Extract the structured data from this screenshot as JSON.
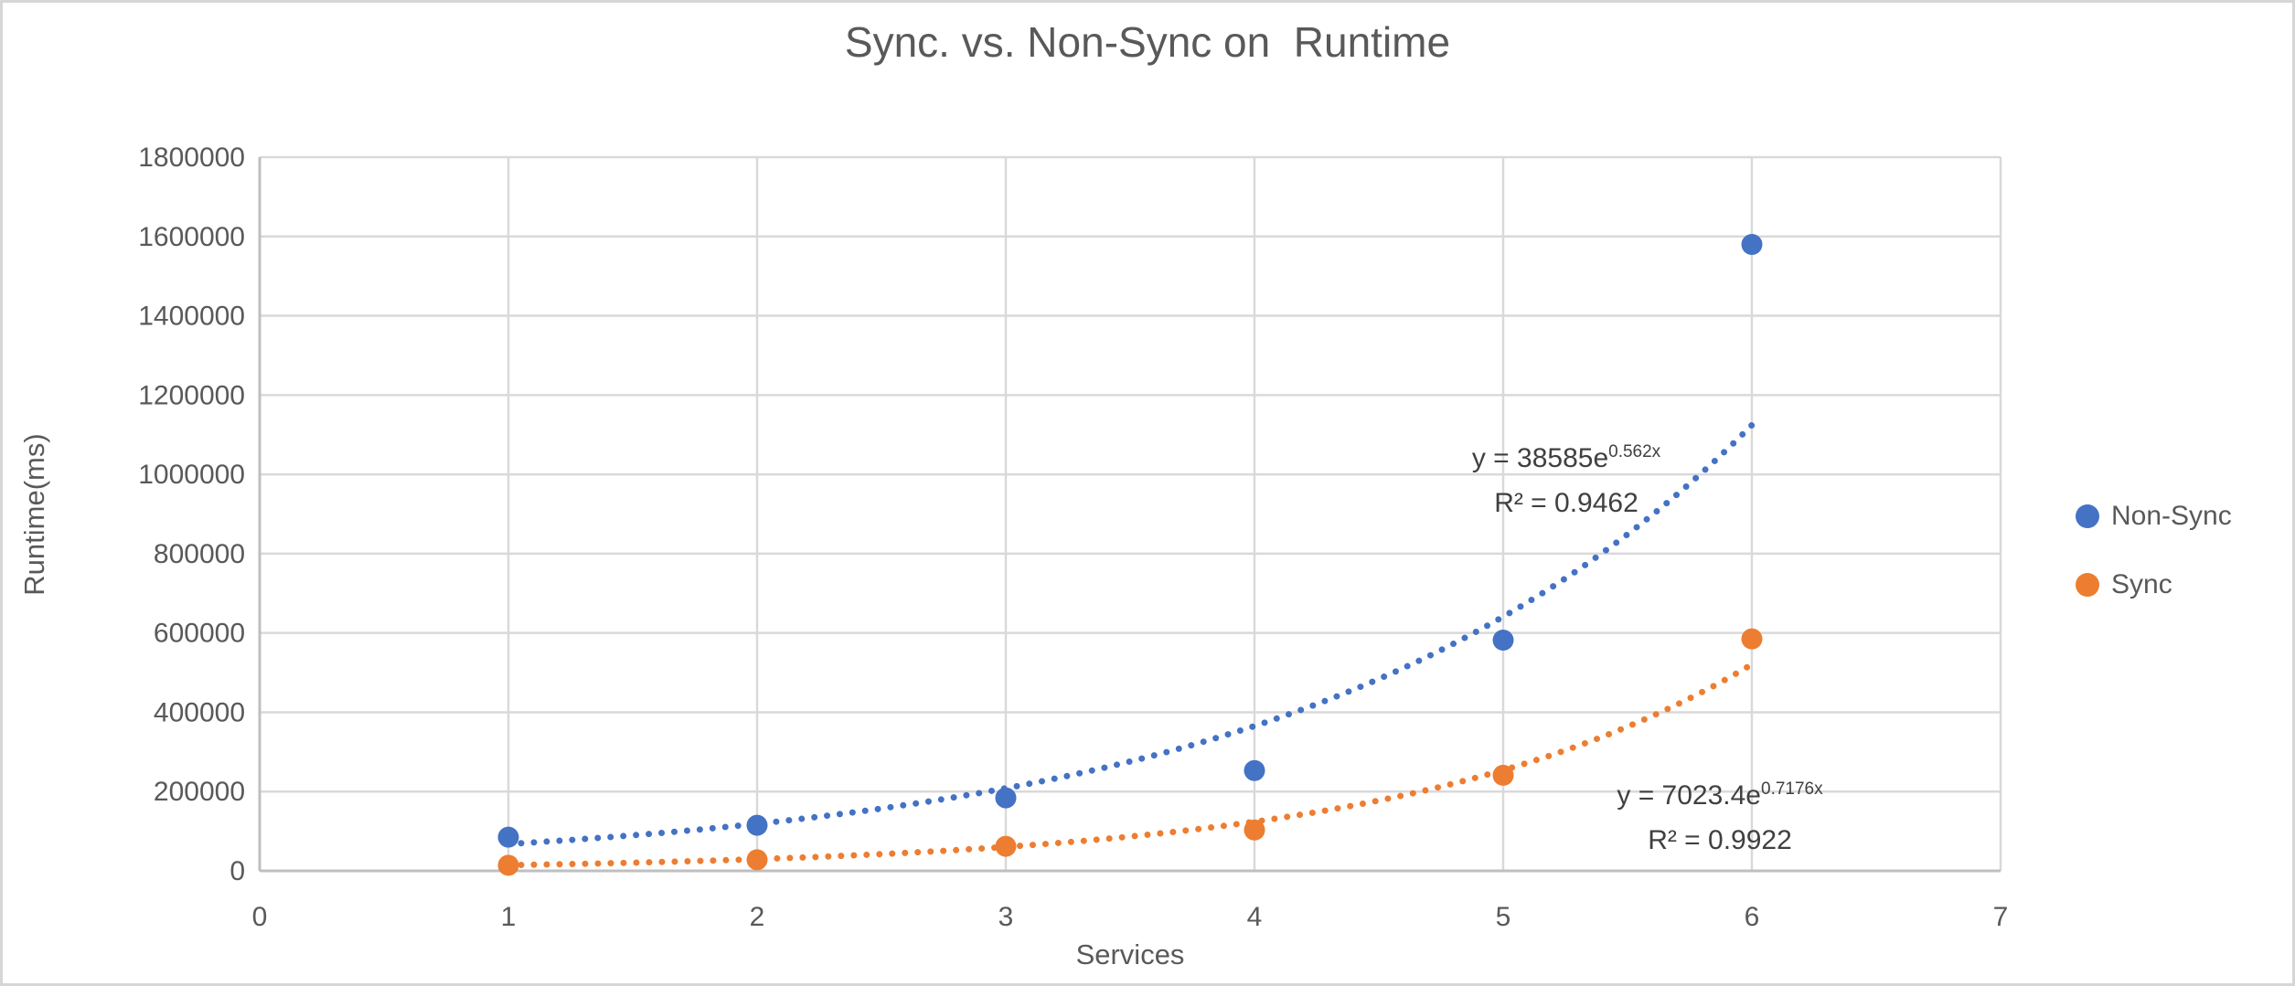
{
  "title": "Sync. vs. Non-Sync on  Runtime",
  "colors": {
    "non_sync": "#4472C4",
    "sync": "#ED7D31",
    "gridline": "#d9d9d9",
    "axis_line": "#bfbfbf",
    "text": "#595959",
    "annotation_text": "#404040"
  },
  "legend": {
    "items": [
      {
        "label": "Non-Sync",
        "color": "#4472C4"
      },
      {
        "label": "Sync",
        "color": "#ED7D31"
      }
    ]
  },
  "equations": [
    {
      "prefix": "y = 38585e",
      "exponent": "0.562x",
      "r2": "R² = 0.9462"
    },
    {
      "prefix": "y = 7023.4e",
      "exponent": "0.7176x",
      "r2": "R² = 0.9922"
    }
  ],
  "chart_data": {
    "type": "scatter",
    "title": "Sync. vs. Non-Sync on  Runtime",
    "xlabel": "Services",
    "ylabel": "Runtime(ms)",
    "xlim": [
      0,
      7
    ],
    "ylim": [
      0,
      1800000
    ],
    "x_tick_step": 1,
    "y_tick_step": 200000,
    "grid": true,
    "legend_position": "right",
    "x": [
      1,
      2,
      3,
      4,
      5,
      6
    ],
    "series": [
      {
        "name": "Non-Sync",
        "color": "#4472C4",
        "values": [
          85000,
          115000,
          184000,
          253000,
          582000,
          1580000
        ],
        "trendline": {
          "type": "exponential",
          "a": 38585,
          "b": 0.562,
          "x_start": 1,
          "x_end": 6,
          "equation": "y = 38585e^0.562x",
          "r_squared": 0.9462
        }
      },
      {
        "name": "Sync",
        "color": "#ED7D31",
        "values": [
          14000,
          28000,
          62000,
          103000,
          241000,
          585000
        ],
        "trendline": {
          "type": "exponential",
          "a": 7023.4,
          "b": 0.7176,
          "x_start": 1,
          "x_end": 6,
          "equation": "y = 7023.4e^0.7176x",
          "r_squared": 0.9922
        }
      }
    ]
  }
}
